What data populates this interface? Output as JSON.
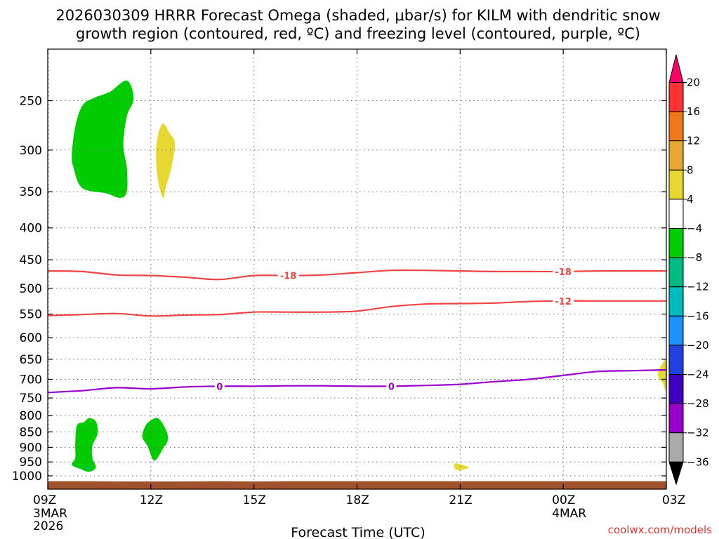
{
  "chart_data": {
    "type": "contour",
    "title_line1": "2026030309 HRRR Forecast Omega (shaded, μbar/s) for KILM with dendritic snow",
    "title_line2": "growth region (contoured, red, ºC) and freezing level (contoured, purple, ºC)",
    "xlabel": "Forecast Time (UTC)",
    "credit": "coolwx.com/models",
    "x_forecast_hours": [
      0,
      3,
      6,
      9,
      12,
      15,
      18
    ],
    "x_ticks": [
      {
        "hour": 0,
        "label": "09Z",
        "sub1": "3MAR",
        "sub2": "2026"
      },
      {
        "hour": 3,
        "label": "12Z",
        "sub1": "",
        "sub2": ""
      },
      {
        "hour": 6,
        "label": "15Z",
        "sub1": "",
        "sub2": ""
      },
      {
        "hour": 9,
        "label": "18Z",
        "sub1": "",
        "sub2": ""
      },
      {
        "hour": 12,
        "label": "21Z",
        "sub1": "",
        "sub2": ""
      },
      {
        "hour": 15,
        "label": "00Z",
        "sub1": "4MAR",
        "sub2": ""
      },
      {
        "hour": 18,
        "label": "03Z",
        "sub1": "",
        "sub2": ""
      }
    ],
    "xlim": [
      0,
      18
    ],
    "y_pressure_ticks": [
      250,
      300,
      350,
      400,
      450,
      500,
      550,
      600,
      650,
      700,
      750,
      800,
      850,
      900,
      950,
      1000
    ],
    "ylim_hpa": [
      1025,
      200
    ],
    "colorbar": {
      "tick_labels": [
        "20",
        "16",
        "12",
        "8",
        "4",
        "−4",
        "−8",
        "−12",
        "−16",
        "−20",
        "−24",
        "−28",
        "−32",
        "−36"
      ],
      "bins_top_to_bottom": [
        {
          "color": "#ff0066"
        },
        {
          "color": "#ff3333"
        },
        {
          "color": "#f07818"
        },
        {
          "color": "#e6a830"
        },
        {
          "color": "#e6d830"
        },
        {
          "color": "#ffffff"
        },
        {
          "color": "#00cc00"
        },
        {
          "color": "#00bb80"
        },
        {
          "color": "#00bbbb"
        },
        {
          "color": "#1e90ff"
        },
        {
          "color": "#2040e0"
        },
        {
          "color": "#4000c0"
        },
        {
          "color": "#9900cc"
        },
        {
          "color": "#aaaaaa"
        },
        {
          "color": "#000000"
        }
      ]
    },
    "series": [
      {
        "name": "dgz_minus18",
        "label": "-18",
        "color": "#ee4444",
        "hours": [
          0,
          1,
          2,
          3,
          4,
          5,
          6,
          7,
          8,
          9,
          10,
          11,
          12,
          13,
          14,
          15,
          16,
          17,
          18
        ],
        "pressure": [
          469,
          470,
          476,
          477,
          480,
          484,
          477,
          477,
          476,
          472,
          468,
          468,
          469,
          470,
          470,
          470,
          469,
          469,
          469
        ],
        "label_at_hours": [
          7,
          15
        ]
      },
      {
        "name": "dgz_minus12",
        "label": "-12",
        "color": "#ee4444",
        "hours": [
          0,
          1,
          2,
          3,
          4,
          5,
          6,
          7,
          8,
          9,
          10,
          11,
          12,
          13,
          14,
          15,
          16,
          17,
          18
        ],
        "pressure": [
          553,
          551,
          549,
          554,
          552,
          551,
          546,
          546,
          546,
          544,
          535,
          530,
          529,
          528,
          525,
          524,
          524,
          524,
          524
        ],
        "label_at_hours": [
          15
        ]
      },
      {
        "name": "freezing_level_0",
        "label": "0",
        "color": "#9900cc",
        "hours": [
          0,
          1,
          2,
          3,
          4,
          5,
          6,
          7,
          8,
          9,
          10,
          11,
          12,
          13,
          14,
          15,
          16,
          17,
          18
        ],
        "pressure": [
          735,
          730,
          722,
          725,
          720,
          718,
          718,
          717,
          717,
          718,
          718,
          716,
          713,
          706,
          700,
          690,
          680,
          678,
          676
        ],
        "label_at_hours": [
          5,
          10
        ]
      }
    ],
    "shaded_regions": [
      {
        "name": "upper-green",
        "color": "#00cc00",
        "points": [
          [
            1.0,
            255
          ],
          [
            1.3,
            248
          ],
          [
            1.8,
            242
          ],
          [
            2.3,
            232
          ],
          [
            2.5,
            248
          ],
          [
            2.3,
            265
          ],
          [
            2.2,
            295
          ],
          [
            2.3,
            320
          ],
          [
            2.3,
            350
          ],
          [
            2.1,
            358
          ],
          [
            1.7,
            352
          ],
          [
            1.0,
            345
          ],
          [
            0.75,
            320
          ],
          [
            0.7,
            305
          ],
          [
            0.8,
            275
          ]
        ]
      },
      {
        "name": "upper-yellow",
        "color": "#e6d830",
        "points": [
          [
            3.35,
            272
          ],
          [
            3.55,
            282
          ],
          [
            3.7,
            293
          ],
          [
            3.6,
            320
          ],
          [
            3.45,
            342
          ],
          [
            3.35,
            358
          ],
          [
            3.2,
            333
          ],
          [
            3.15,
            305
          ],
          [
            3.2,
            285
          ]
        ]
      },
      {
        "name": "lower-green-left",
        "color": "#00cc00",
        "points": [
          [
            1.05,
            820
          ],
          [
            1.2,
            808
          ],
          [
            1.4,
            818
          ],
          [
            1.45,
            855
          ],
          [
            1.3,
            895
          ],
          [
            1.3,
            935
          ],
          [
            1.4,
            970
          ],
          [
            1.2,
            985
          ],
          [
            0.95,
            975
          ],
          [
            0.7,
            960
          ],
          [
            0.8,
            935
          ],
          [
            0.8,
            885
          ],
          [
            0.85,
            830
          ]
        ]
      },
      {
        "name": "lower-green-right",
        "color": "#00cc00",
        "points": [
          [
            3.0,
            815
          ],
          [
            3.2,
            808
          ],
          [
            3.4,
            835
          ],
          [
            3.5,
            872
          ],
          [
            3.35,
            905
          ],
          [
            3.1,
            945
          ],
          [
            2.9,
            895
          ],
          [
            2.75,
            865
          ],
          [
            2.85,
            830
          ]
        ]
      },
      {
        "name": "lower-teal-dot",
        "color": "#00bb80",
        "points": [
          [
            1.15,
            964
          ],
          [
            1.25,
            968
          ],
          [
            1.21,
            975
          ],
          [
            1.11,
            973
          ]
        ]
      },
      {
        "name": "small-yellow-21z",
        "color": "#e6d830",
        "points": [
          [
            11.85,
            955
          ],
          [
            12.1,
            962
          ],
          [
            12.25,
            970
          ],
          [
            12.0,
            980
          ],
          [
            11.85,
            974
          ]
        ]
      },
      {
        "name": "yellow-03z-edge",
        "color": "#e6d830",
        "points": [
          [
            17.85,
            665
          ],
          [
            18.0,
            655
          ],
          [
            18.0,
            730
          ],
          [
            17.9,
            710
          ],
          [
            17.75,
            690
          ]
        ]
      }
    ],
    "terrain": {
      "color": "#a0522d",
      "top_hpa": [
        1020,
        1020,
        1021,
        1021,
        1021,
        1020,
        1021,
        1020,
        1020,
        1020,
        1020,
        1020,
        1020,
        1020,
        1020,
        1020,
        1020,
        1020,
        1020
      ]
    }
  }
}
